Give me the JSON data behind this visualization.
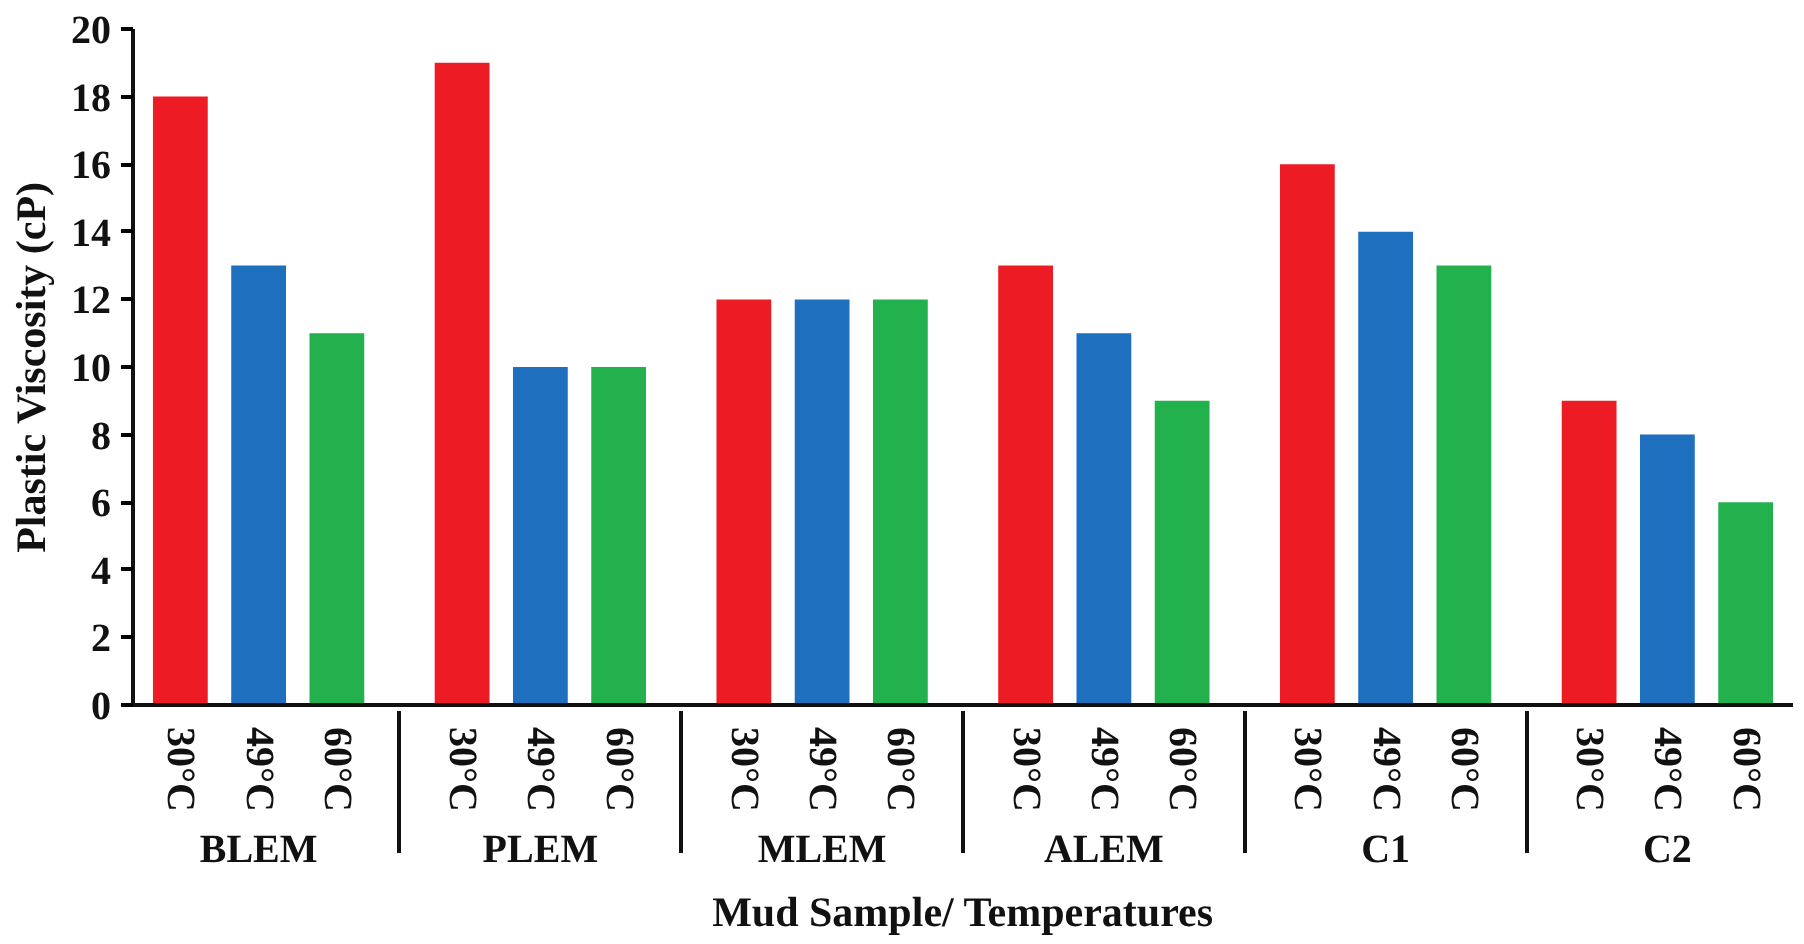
{
  "chart_data": {
    "type": "bar",
    "xlabel": "Mud Sample/ Temperatures",
    "ylabel": "Plastic Viscosity (cP)",
    "categories": [
      "BLEM",
      "PLEM",
      "MLEM",
      "ALEM",
      "C1",
      "C2"
    ],
    "series": [
      {
        "name": "30°C",
        "color": "#ed1c24",
        "values": [
          18,
          19,
          12,
          13,
          16,
          9
        ]
      },
      {
        "name": "49°C",
        "color": "#1f6fbf",
        "values": [
          13,
          10,
          12,
          11,
          14,
          8
        ]
      },
      {
        "name": "60°C",
        "color": "#22b14c",
        "values": [
          11,
          10,
          12,
          9,
          13,
          6
        ]
      }
    ],
    "ylim": [
      0,
      20
    ],
    "yticks": [
      0,
      2,
      4,
      6,
      8,
      10,
      12,
      14,
      16,
      18,
      20
    ],
    "grid": false
  }
}
